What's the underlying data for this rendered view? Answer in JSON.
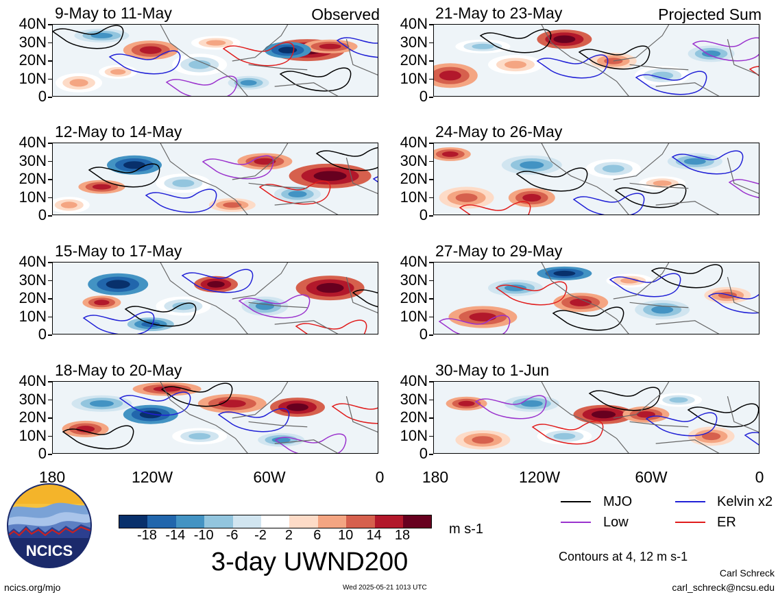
{
  "panels_left": [
    {
      "title": "9-May to 11-May",
      "tag": "Observed"
    },
    {
      "title": "12-May to 14-May",
      "tag": ""
    },
    {
      "title": "15-May to 17-May",
      "tag": ""
    },
    {
      "title": "18-May to 20-May",
      "tag": ""
    }
  ],
  "panels_right": [
    {
      "title": "21-May to 23-May",
      "tag": "Projected Sum"
    },
    {
      "title": "24-May to 26-May",
      "tag": ""
    },
    {
      "title": "27-May to 29-May",
      "tag": ""
    },
    {
      "title": "30-May to 1-Jun",
      "tag": ""
    }
  ],
  "y_ticks": [
    "40N",
    "30N",
    "20N",
    "10N",
    "0"
  ],
  "x_ticks": [
    "180",
    "120W",
    "60W",
    "0"
  ],
  "colorbar": {
    "labels": [
      "-18",
      "-14",
      "-10",
      "-6",
      "-2",
      "2",
      "6",
      "10",
      "14",
      "18"
    ],
    "colors": [
      "#08306b",
      "#2166ac",
      "#4393c3",
      "#92c5de",
      "#d1e5f0",
      "#ffffff",
      "#fddbc7",
      "#f4a582",
      "#d6604d",
      "#b2182b",
      "#67001f"
    ],
    "units": "m s-1"
  },
  "title": "3-day UWND200",
  "legend": [
    {
      "label": "MJO",
      "color": "#000000"
    },
    {
      "label": "Kelvin x2",
      "color": "#1f1fd6"
    },
    {
      "label": "Low",
      "color": "#9a32cd"
    },
    {
      "label": "ER",
      "color": "#e01b1b"
    }
  ],
  "contours_note": "Contours at 4, 12 m s-1",
  "logo_text": "NCICS",
  "footer": {
    "url": "ncics.org/mjo",
    "timestamp": "Wed 2025-05-21 1013 UTC",
    "author": "Carl Schreck",
    "email": "carl_schreck@ncsu.edu"
  }
}
